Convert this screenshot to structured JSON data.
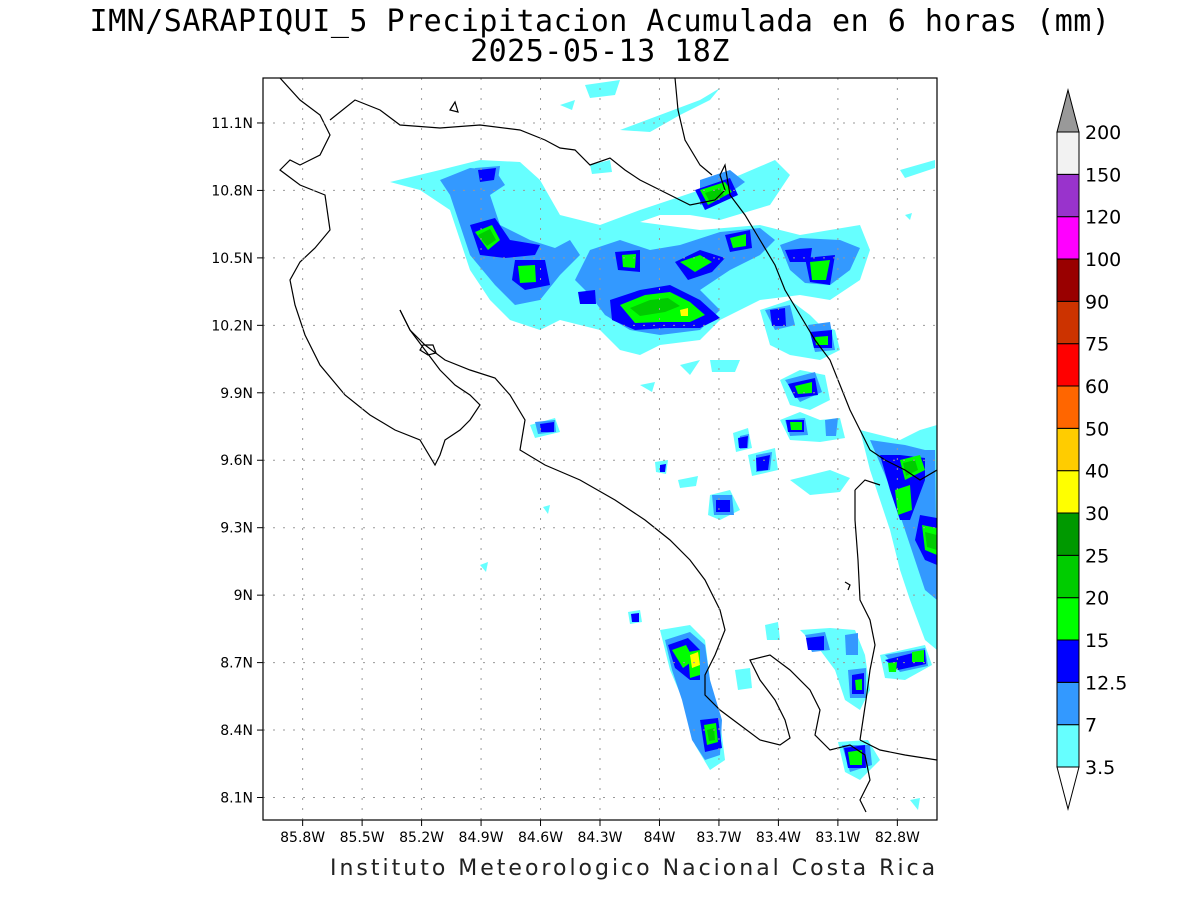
{
  "title": {
    "line1": "IMN/SARAPIQUI_5 Precipitacion Acumulada en 6 horas (mm)",
    "line2": "2025-05-13 18Z"
  },
  "footer": "Instituto Meteorologico Nacional Costa Rica",
  "map": {
    "x_ticks": [
      {
        "lon": -85.8,
        "label": "85.8W"
      },
      {
        "lon": -85.5,
        "label": "85.5W"
      },
      {
        "lon": -85.2,
        "label": "85.2W"
      },
      {
        "lon": -84.9,
        "label": "84.9W"
      },
      {
        "lon": -84.6,
        "label": "84.6W"
      },
      {
        "lon": -84.3,
        "label": "84.3W"
      },
      {
        "lon": -84.0,
        "label": "84W"
      },
      {
        "lon": -83.7,
        "label": "83.7W"
      },
      {
        "lon": -83.4,
        "label": "83.4W"
      },
      {
        "lon": -83.1,
        "label": "83.1W"
      },
      {
        "lon": -82.8,
        "label": "82.8W"
      }
    ],
    "y_ticks": [
      {
        "lat": 11.1,
        "label": "11.1N"
      },
      {
        "lat": 10.8,
        "label": "10.8N"
      },
      {
        "lat": 10.5,
        "label": "10.5N"
      },
      {
        "lat": 10.2,
        "label": "10.2N"
      },
      {
        "lat": 9.9,
        "label": "9.9N"
      },
      {
        "lat": 9.6,
        "label": "9.6N"
      },
      {
        "lat": 9.3,
        "label": "9.3N"
      },
      {
        "lat": 9.0,
        "label": "9N"
      },
      {
        "lat": 8.7,
        "label": "8.7N"
      },
      {
        "lat": 8.4,
        "label": "8.4N"
      },
      {
        "lat": 8.1,
        "label": "8.1N"
      }
    ],
    "lon_range": [
      -86.0,
      -82.6
    ],
    "lat_range": [
      8.0,
      11.3
    ],
    "grid": true
  },
  "colorbar": {
    "labels": [
      "3.5",
      "7",
      "12.5",
      "15",
      "20",
      "25",
      "30",
      "40",
      "50",
      "60",
      "75",
      "90",
      "100",
      "120",
      "150",
      "200"
    ],
    "colors": [
      "#66ffff",
      "#3399ff",
      "#0000ff",
      "#00ff00",
      "#00cc00",
      "#009900",
      "#ffff00",
      "#ffcc00",
      "#ff6600",
      "#ff0000",
      "#cc3300",
      "#990000",
      "#ff00ff",
      "#9933cc",
      "#f2f2f2",
      "#999999"
    ]
  }
}
